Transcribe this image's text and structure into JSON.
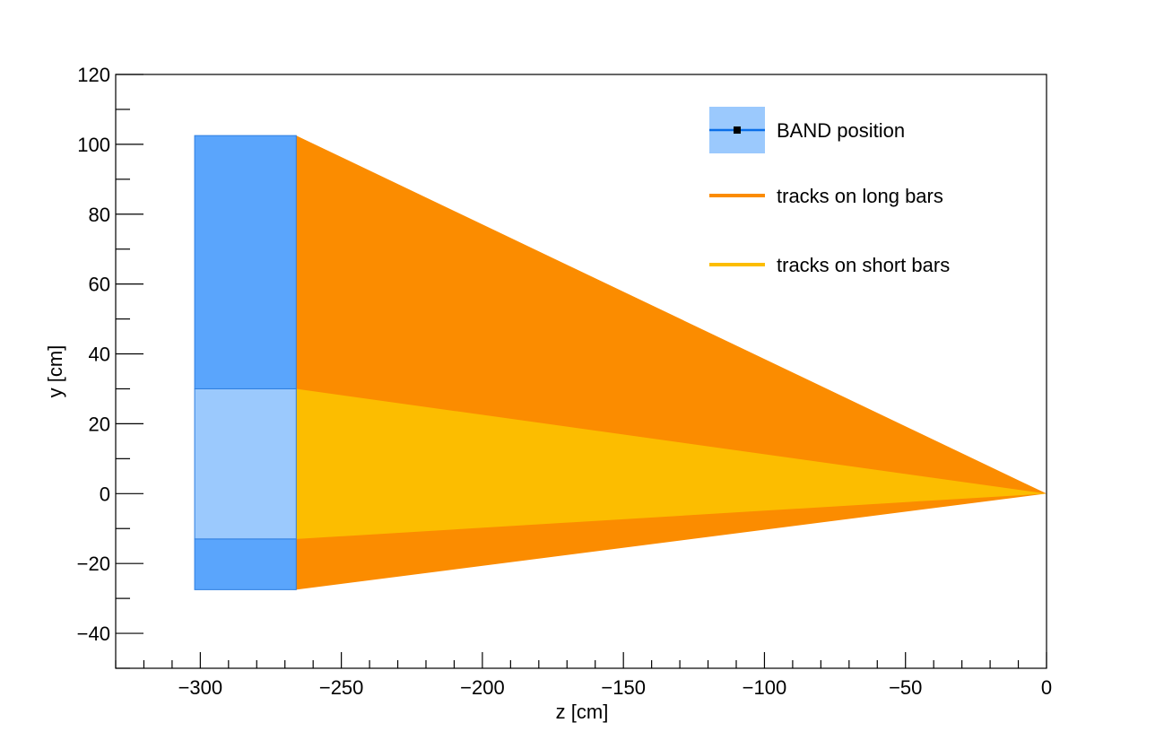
{
  "chart_data": {
    "type": "area",
    "xlabel": "z [cm]",
    "ylabel": "y [cm]",
    "xlim": [
      -330,
      0
    ],
    "ylim": [
      -50,
      120
    ],
    "x_ticks": [
      -300,
      -250,
      -200,
      -150,
      -100,
      -50,
      0
    ],
    "x_tick_labels": [
      "−300",
      "−250",
      "−200",
      "−150",
      "−100",
      "−50",
      "0"
    ],
    "y_ticks": [
      -40,
      -20,
      0,
      20,
      40,
      60,
      80,
      100,
      120
    ],
    "y_tick_labels": [
      "−40",
      "−20",
      "0",
      "20",
      "40",
      "60",
      "80",
      "100",
      "120"
    ],
    "grid": false,
    "legend_position": "top-right",
    "series": [
      {
        "name": "BAND position",
        "kind": "boxes",
        "color": "#5aa5fc",
        "light_color": "#9bc9fd",
        "edge_color": "#2f7fe0",
        "boxes": [
          {
            "z": [
              -302,
              -266
            ],
            "y": [
              30,
              102.5
            ],
            "shade": "dark"
          },
          {
            "z": [
              -302,
              -266
            ],
            "y": [
              -13,
              30
            ],
            "shade": "light"
          },
          {
            "z": [
              -302,
              -266
            ],
            "y": [
              -27.5,
              -13
            ],
            "shade": "dark"
          }
        ]
      },
      {
        "name": "tracks on long bars",
        "kind": "polygon",
        "color": "#fb8c00",
        "points": [
          [
            -266,
            102.5
          ],
          [
            0,
            0
          ],
          [
            -266,
            -27.5
          ]
        ]
      },
      {
        "name": "tracks on short bars",
        "kind": "polygon",
        "color": "#fcbd00",
        "points": [
          [
            -266,
            30
          ],
          [
            0,
            0
          ],
          [
            -266,
            -13
          ]
        ]
      }
    ]
  }
}
